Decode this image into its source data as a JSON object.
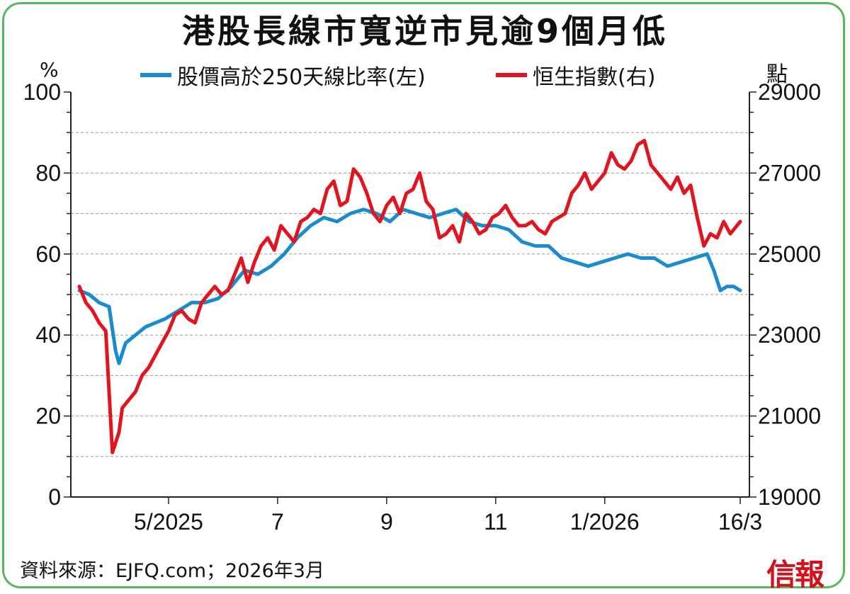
{
  "header": {
    "title": "港股長線市寬逆市見逾9個月低"
  },
  "source_note": "資料來源：EJFQ.com；2026年3月",
  "logo_text": "信報",
  "colors": {
    "left_series": "#1a8ccd",
    "right_series": "#e0151f",
    "frame": "#56b85a"
  },
  "chart_data": {
    "type": "line",
    "title": "港股長線市寬逆市見逾9個月低",
    "legend_placement": "top-center",
    "grid": "horizontal dashed",
    "left_axis": {
      "label": "%",
      "ylim": [
        0,
        100
      ],
      "ticks": [
        "0",
        "20",
        "40",
        "60",
        "80",
        "100"
      ]
    },
    "right_axis": {
      "label": "點",
      "ylim": [
        19000,
        29000
      ],
      "ticks": [
        "19000",
        "21000",
        "23000",
        "25000",
        "27000",
        "29000"
      ]
    },
    "x_axis": {
      "ticks": [
        {
          "label": "5/2025",
          "x": 0.135
        },
        {
          "label": "7",
          "x": 0.3
        },
        {
          "label": "9",
          "x": 0.465
        },
        {
          "label": "11",
          "x": 0.63
        },
        {
          "label": "1/2026",
          "x": 0.795
        },
        {
          "label": "16/3",
          "x": 1.0
        }
      ]
    },
    "series": [
      {
        "name": "股價高於250天線比率(左)",
        "axis": "left",
        "x": [
          0.0,
          0.015,
          0.03,
          0.045,
          0.055,
          0.06,
          0.07,
          0.085,
          0.1,
          0.115,
          0.13,
          0.15,
          0.17,
          0.19,
          0.21,
          0.23,
          0.25,
          0.27,
          0.29,
          0.31,
          0.33,
          0.35,
          0.37,
          0.39,
          0.41,
          0.43,
          0.45,
          0.47,
          0.49,
          0.51,
          0.53,
          0.55,
          0.57,
          0.59,
          0.61,
          0.63,
          0.65,
          0.67,
          0.69,
          0.71,
          0.73,
          0.75,
          0.77,
          0.79,
          0.81,
          0.83,
          0.85,
          0.87,
          0.89,
          0.91,
          0.93,
          0.95,
          0.96,
          0.97,
          0.98,
          0.99,
          1.0
        ],
        "y": [
          51.0,
          50.0,
          48.0,
          47.0,
          36.0,
          33.0,
          38.0,
          40.0,
          42.0,
          43.0,
          44.0,
          46.0,
          48.0,
          48.0,
          49.0,
          52.0,
          56.0,
          55.0,
          57.0,
          60.0,
          64.0,
          67.0,
          69.0,
          68.0,
          70.0,
          71.0,
          70.0,
          68.0,
          71.0,
          70.0,
          69.0,
          70.0,
          71.0,
          68.0,
          67.0,
          67.0,
          66.0,
          63.0,
          62.0,
          62.0,
          59.0,
          58.0,
          57.0,
          58.0,
          59.0,
          60.0,
          59.0,
          59.0,
          57.0,
          58.0,
          59.0,
          60.0,
          56.0,
          51.0,
          52.0,
          52.0,
          51.0
        ]
      },
      {
        "name": "恒生指數(右)",
        "axis": "right",
        "x": [
          0.0,
          0.01,
          0.02,
          0.03,
          0.04,
          0.05,
          0.06,
          0.065,
          0.075,
          0.085,
          0.095,
          0.105,
          0.115,
          0.125,
          0.135,
          0.145,
          0.155,
          0.165,
          0.175,
          0.185,
          0.195,
          0.205,
          0.215,
          0.225,
          0.235,
          0.245,
          0.255,
          0.265,
          0.275,
          0.285,
          0.295,
          0.305,
          0.315,
          0.325,
          0.335,
          0.345,
          0.355,
          0.365,
          0.375,
          0.385,
          0.395,
          0.405,
          0.415,
          0.425,
          0.435,
          0.445,
          0.455,
          0.465,
          0.475,
          0.485,
          0.495,
          0.505,
          0.515,
          0.525,
          0.535,
          0.545,
          0.555,
          0.565,
          0.575,
          0.585,
          0.595,
          0.605,
          0.615,
          0.625,
          0.635,
          0.645,
          0.655,
          0.665,
          0.675,
          0.685,
          0.695,
          0.705,
          0.715,
          0.725,
          0.735,
          0.745,
          0.755,
          0.765,
          0.775,
          0.785,
          0.795,
          0.805,
          0.815,
          0.825,
          0.835,
          0.845,
          0.855,
          0.865,
          0.875,
          0.885,
          0.895,
          0.905,
          0.915,
          0.925,
          0.935,
          0.945,
          0.955,
          0.965,
          0.975,
          0.985,
          0.995,
          1.0
        ],
        "y": [
          24200,
          23800,
          23600,
          23300,
          23100,
          20100,
          20600,
          21200,
          21400,
          21600,
          22000,
          22200,
          22500,
          22800,
          23100,
          23500,
          23600,
          23400,
          23300,
          23800,
          24000,
          24200,
          24000,
          24100,
          24500,
          24900,
          24300,
          24800,
          25200,
          25400,
          25100,
          25700,
          25500,
          25300,
          25800,
          25900,
          26100,
          26000,
          26600,
          26800,
          26200,
          26300,
          27100,
          26900,
          26500,
          26000,
          25800,
          26200,
          26400,
          26000,
          26500,
          26600,
          27000,
          26300,
          26100,
          25400,
          25500,
          25700,
          25300,
          26000,
          25800,
          25500,
          25600,
          25900,
          26000,
          26200,
          25900,
          25700,
          25700,
          25800,
          25600,
          25500,
          25800,
          25900,
          26000,
          26500,
          26700,
          27000,
          26600,
          26800,
          27000,
          27500,
          27200,
          27100,
          27300,
          27700,
          27800,
          27200,
          27000,
          26800,
          26600,
          26900,
          26500,
          26700,
          25900,
          25200,
          25500,
          25400,
          25800,
          25500,
          25700,
          25800
        ]
      }
    ]
  }
}
